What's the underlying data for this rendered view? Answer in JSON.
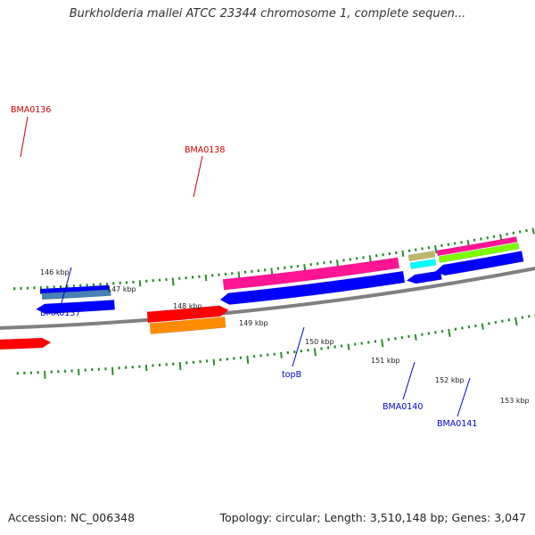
{
  "title": "Burkholderia mallei ATCC 23344 chromosome 1, complete sequen...",
  "footer": {
    "accession": "Accession: NC_006348",
    "summary": "Topology: circular; Length: 3,510,148 bp; Genes: 3,047"
  },
  "colors": {
    "backbone": "#808080",
    "tick": "#2e8b2e",
    "label_forward": "#cc0000",
    "label_reverse": "#0000cc"
  },
  "tick_labels": [
    "146 kbp",
    "147 kbp",
    "148 kbp",
    "149 kbp",
    "150 kbp",
    "151 kbp",
    "152 kbp",
    "153 kbp"
  ],
  "gene_labels": [
    {
      "text": "BMA0136",
      "strand": "forward"
    },
    {
      "text": "BMA0138",
      "strand": "forward"
    },
    {
      "text": "BMA0137",
      "strand": "reverse"
    },
    {
      "text": "topB",
      "strand": "reverse"
    },
    {
      "text": "BMA0140",
      "strand": "reverse"
    },
    {
      "text": "BMA0141",
      "strand": "reverse"
    }
  ],
  "features": [
    {
      "name": "bma0136-gene",
      "color": "#ff0000",
      "direction": "right"
    },
    {
      "name": "bma0138-orange-feature",
      "color": "#ff8c00",
      "direction": "none"
    },
    {
      "name": "bma0138-gene",
      "color": "#ff0000",
      "direction": "right"
    },
    {
      "name": "bma0137-gene",
      "color": "#0000ff",
      "direction": "left"
    },
    {
      "name": "bma0137-steelblue-feature",
      "color": "#4682b4",
      "direction": "none"
    },
    {
      "name": "bma0137-blue-feature",
      "color": "#0000ff",
      "direction": "none"
    },
    {
      "name": "topb-gene",
      "color": "#0000ff",
      "direction": "left"
    },
    {
      "name": "topb-pink-feature",
      "color": "#ff1493",
      "direction": "none"
    },
    {
      "name": "bma0140-gene",
      "color": "#0000ff",
      "direction": "left"
    },
    {
      "name": "bma0140-cyan-feature",
      "color": "#00ffff",
      "direction": "none"
    },
    {
      "name": "bma0140-tan-feature",
      "color": "#bdb76b",
      "direction": "none"
    },
    {
      "name": "bma0141-gene",
      "color": "#0000ff",
      "direction": "left"
    },
    {
      "name": "bma0141-green-feature",
      "color": "#7cfc00",
      "direction": "none"
    },
    {
      "name": "bma0141-pink-feature",
      "color": "#ff1493",
      "direction": "none"
    }
  ]
}
